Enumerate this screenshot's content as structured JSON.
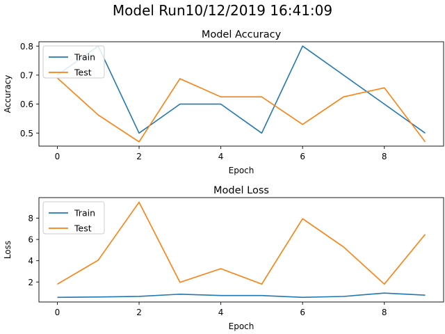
{
  "figure": {
    "suptitle": "Model Run10/12/2019 16:41:09"
  },
  "chart_data": [
    {
      "type": "line",
      "title": "Model Accuracy",
      "xlabel": "Epoch",
      "ylabel": "Accuracy",
      "x": [
        0,
        1,
        2,
        3,
        4,
        5,
        6,
        7,
        8,
        9
      ],
      "xlim": [
        -0.45,
        9.45
      ],
      "ylim": [
        0.455,
        0.815
      ],
      "xticks": [
        0,
        2,
        4,
        6,
        8
      ],
      "yticks": [
        0.5,
        0.6,
        0.7,
        0.8
      ],
      "ytick_labels": [
        "0.5",
        "0.6",
        "0.7",
        "0.8"
      ],
      "legend_loc": "upper left",
      "series": [
        {
          "name": "Train",
          "color": "#1f77b4",
          "values": [
            0.7,
            0.8,
            0.5,
            0.6,
            0.6,
            0.5,
            0.8,
            0.7,
            0.6,
            0.5
          ]
        },
        {
          "name": "Test",
          "color": "#ff7f0e",
          "values": [
            0.69,
            0.5625,
            0.47,
            0.6875,
            0.625,
            0.625,
            0.53,
            0.625,
            0.656,
            0.47
          ]
        }
      ]
    },
    {
      "type": "line",
      "title": "Model Loss",
      "xlabel": "Epoch",
      "ylabel": "Loss",
      "x": [
        0,
        1,
        2,
        3,
        4,
        5,
        6,
        7,
        8,
        9
      ],
      "xlim": [
        -0.45,
        9.45
      ],
      "ylim": [
        0.12,
        9.93
      ],
      "xticks": [
        0,
        2,
        4,
        6,
        8
      ],
      "yticks": [
        2,
        4,
        6,
        8
      ],
      "ytick_labels": [
        "2",
        "4",
        "6",
        "8"
      ],
      "legend_loc": "upper left",
      "series": [
        {
          "name": "Train",
          "color": "#1f77b4",
          "values": [
            0.56,
            0.59,
            0.65,
            0.85,
            0.73,
            0.73,
            0.56,
            0.64,
            0.96,
            0.76
          ]
        },
        {
          "name": "Test",
          "color": "#ff7f0e",
          "values": [
            1.8,
            4.05,
            9.5,
            1.97,
            3.25,
            1.8,
            7.95,
            5.3,
            1.8,
            6.48
          ]
        }
      ]
    }
  ]
}
